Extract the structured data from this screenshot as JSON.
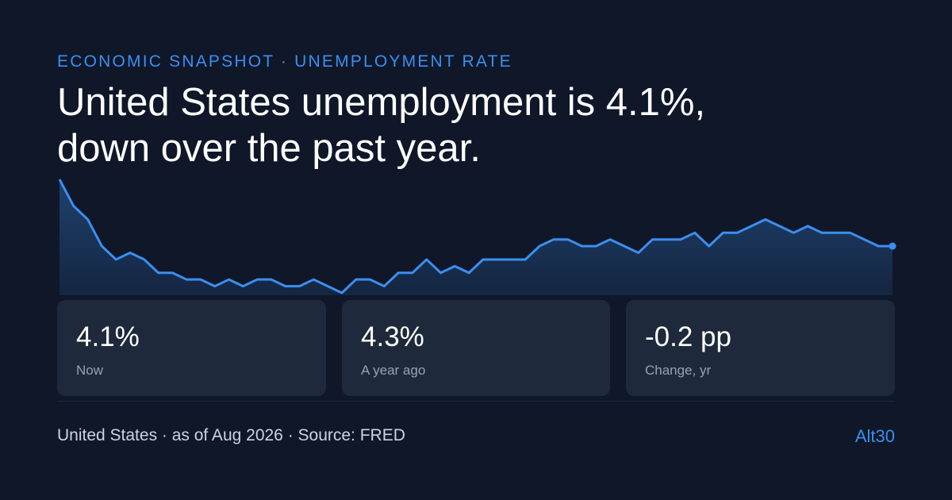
{
  "header": {
    "eyebrow": "ECONOMIC SNAPSHOT · UNEMPLOYMENT RATE",
    "title_lines": [
      "United States unemployment is 4.1%,",
      "down over the past year."
    ]
  },
  "chart_data": {
    "type": "line",
    "color": "#3b8ff0",
    "values": [
      5.1,
      4.7,
      4.5,
      4.1,
      3.9,
      4.0,
      3.9,
      3.7,
      3.7,
      3.6,
      3.6,
      3.5,
      3.6,
      3.5,
      3.6,
      3.6,
      3.5,
      3.5,
      3.6,
      3.5,
      3.4,
      3.6,
      3.6,
      3.5,
      3.7,
      3.7,
      3.9,
      3.7,
      3.8,
      3.7,
      3.9,
      3.9,
      3.9,
      3.9,
      4.1,
      4.2,
      4.2,
      4.1,
      4.1,
      4.2,
      4.1,
      4.0,
      4.2,
      4.2,
      4.2,
      4.3,
      4.1,
      4.3,
      4.3,
      4.4,
      4.5,
      4.4,
      4.3,
      4.4,
      4.3,
      4.3,
      4.3,
      4.2,
      4.1,
      4.1
    ]
  },
  "stats": [
    {
      "value": "4.1%",
      "label": "Now"
    },
    {
      "value": "4.3%",
      "label": "A year ago"
    },
    {
      "value": "-0.2 pp",
      "label": "Change, yr"
    }
  ],
  "footer": {
    "source": "United States · as of Aug 2026 · Source: FRED",
    "brand": "Alt30"
  }
}
